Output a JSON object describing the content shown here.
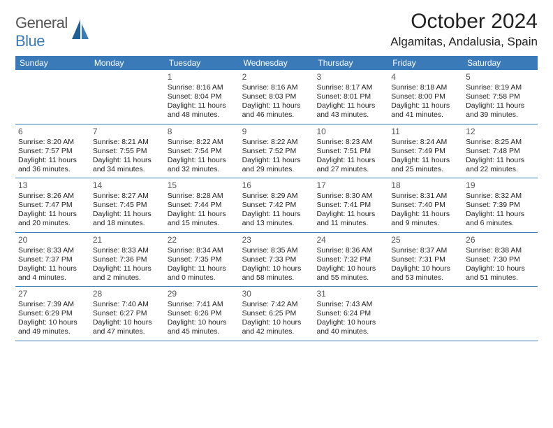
{
  "logo": {
    "textGray": "General",
    "textBlue": "Blue"
  },
  "title": "October 2024",
  "location": "Algamitas, Andalusia, Spain",
  "colors": {
    "accent": "#3a7ab8",
    "text": "#222222",
    "muted": "#555555",
    "bg": "#ffffff"
  },
  "weekdays": [
    "Sunday",
    "Monday",
    "Tuesday",
    "Wednesday",
    "Thursday",
    "Friday",
    "Saturday"
  ],
  "weeks": [
    [
      {
        "n": "",
        "rise": "",
        "set": "",
        "day": ""
      },
      {
        "n": "",
        "rise": "",
        "set": "",
        "day": ""
      },
      {
        "n": "1",
        "rise": "Sunrise: 8:16 AM",
        "set": "Sunset: 8:04 PM",
        "day": "Daylight: 11 hours and 48 minutes."
      },
      {
        "n": "2",
        "rise": "Sunrise: 8:16 AM",
        "set": "Sunset: 8:03 PM",
        "day": "Daylight: 11 hours and 46 minutes."
      },
      {
        "n": "3",
        "rise": "Sunrise: 8:17 AM",
        "set": "Sunset: 8:01 PM",
        "day": "Daylight: 11 hours and 43 minutes."
      },
      {
        "n": "4",
        "rise": "Sunrise: 8:18 AM",
        "set": "Sunset: 8:00 PM",
        "day": "Daylight: 11 hours and 41 minutes."
      },
      {
        "n": "5",
        "rise": "Sunrise: 8:19 AM",
        "set": "Sunset: 7:58 PM",
        "day": "Daylight: 11 hours and 39 minutes."
      }
    ],
    [
      {
        "n": "6",
        "rise": "Sunrise: 8:20 AM",
        "set": "Sunset: 7:57 PM",
        "day": "Daylight: 11 hours and 36 minutes."
      },
      {
        "n": "7",
        "rise": "Sunrise: 8:21 AM",
        "set": "Sunset: 7:55 PM",
        "day": "Daylight: 11 hours and 34 minutes."
      },
      {
        "n": "8",
        "rise": "Sunrise: 8:22 AM",
        "set": "Sunset: 7:54 PM",
        "day": "Daylight: 11 hours and 32 minutes."
      },
      {
        "n": "9",
        "rise": "Sunrise: 8:22 AM",
        "set": "Sunset: 7:52 PM",
        "day": "Daylight: 11 hours and 29 minutes."
      },
      {
        "n": "10",
        "rise": "Sunrise: 8:23 AM",
        "set": "Sunset: 7:51 PM",
        "day": "Daylight: 11 hours and 27 minutes."
      },
      {
        "n": "11",
        "rise": "Sunrise: 8:24 AM",
        "set": "Sunset: 7:49 PM",
        "day": "Daylight: 11 hours and 25 minutes."
      },
      {
        "n": "12",
        "rise": "Sunrise: 8:25 AM",
        "set": "Sunset: 7:48 PM",
        "day": "Daylight: 11 hours and 22 minutes."
      }
    ],
    [
      {
        "n": "13",
        "rise": "Sunrise: 8:26 AM",
        "set": "Sunset: 7:47 PM",
        "day": "Daylight: 11 hours and 20 minutes."
      },
      {
        "n": "14",
        "rise": "Sunrise: 8:27 AM",
        "set": "Sunset: 7:45 PM",
        "day": "Daylight: 11 hours and 18 minutes."
      },
      {
        "n": "15",
        "rise": "Sunrise: 8:28 AM",
        "set": "Sunset: 7:44 PM",
        "day": "Daylight: 11 hours and 15 minutes."
      },
      {
        "n": "16",
        "rise": "Sunrise: 8:29 AM",
        "set": "Sunset: 7:42 PM",
        "day": "Daylight: 11 hours and 13 minutes."
      },
      {
        "n": "17",
        "rise": "Sunrise: 8:30 AM",
        "set": "Sunset: 7:41 PM",
        "day": "Daylight: 11 hours and 11 minutes."
      },
      {
        "n": "18",
        "rise": "Sunrise: 8:31 AM",
        "set": "Sunset: 7:40 PM",
        "day": "Daylight: 11 hours and 9 minutes."
      },
      {
        "n": "19",
        "rise": "Sunrise: 8:32 AM",
        "set": "Sunset: 7:39 PM",
        "day": "Daylight: 11 hours and 6 minutes."
      }
    ],
    [
      {
        "n": "20",
        "rise": "Sunrise: 8:33 AM",
        "set": "Sunset: 7:37 PM",
        "day": "Daylight: 11 hours and 4 minutes."
      },
      {
        "n": "21",
        "rise": "Sunrise: 8:33 AM",
        "set": "Sunset: 7:36 PM",
        "day": "Daylight: 11 hours and 2 minutes."
      },
      {
        "n": "22",
        "rise": "Sunrise: 8:34 AM",
        "set": "Sunset: 7:35 PM",
        "day": "Daylight: 11 hours and 0 minutes."
      },
      {
        "n": "23",
        "rise": "Sunrise: 8:35 AM",
        "set": "Sunset: 7:33 PM",
        "day": "Daylight: 10 hours and 58 minutes."
      },
      {
        "n": "24",
        "rise": "Sunrise: 8:36 AM",
        "set": "Sunset: 7:32 PM",
        "day": "Daylight: 10 hours and 55 minutes."
      },
      {
        "n": "25",
        "rise": "Sunrise: 8:37 AM",
        "set": "Sunset: 7:31 PM",
        "day": "Daylight: 10 hours and 53 minutes."
      },
      {
        "n": "26",
        "rise": "Sunrise: 8:38 AM",
        "set": "Sunset: 7:30 PM",
        "day": "Daylight: 10 hours and 51 minutes."
      }
    ],
    [
      {
        "n": "27",
        "rise": "Sunrise: 7:39 AM",
        "set": "Sunset: 6:29 PM",
        "day": "Daylight: 10 hours and 49 minutes."
      },
      {
        "n": "28",
        "rise": "Sunrise: 7:40 AM",
        "set": "Sunset: 6:27 PM",
        "day": "Daylight: 10 hours and 47 minutes."
      },
      {
        "n": "29",
        "rise": "Sunrise: 7:41 AM",
        "set": "Sunset: 6:26 PM",
        "day": "Daylight: 10 hours and 45 minutes."
      },
      {
        "n": "30",
        "rise": "Sunrise: 7:42 AM",
        "set": "Sunset: 6:25 PM",
        "day": "Daylight: 10 hours and 42 minutes."
      },
      {
        "n": "31",
        "rise": "Sunrise: 7:43 AM",
        "set": "Sunset: 6:24 PM",
        "day": "Daylight: 10 hours and 40 minutes."
      },
      {
        "n": "",
        "rise": "",
        "set": "",
        "day": ""
      },
      {
        "n": "",
        "rise": "",
        "set": "",
        "day": ""
      }
    ]
  ]
}
